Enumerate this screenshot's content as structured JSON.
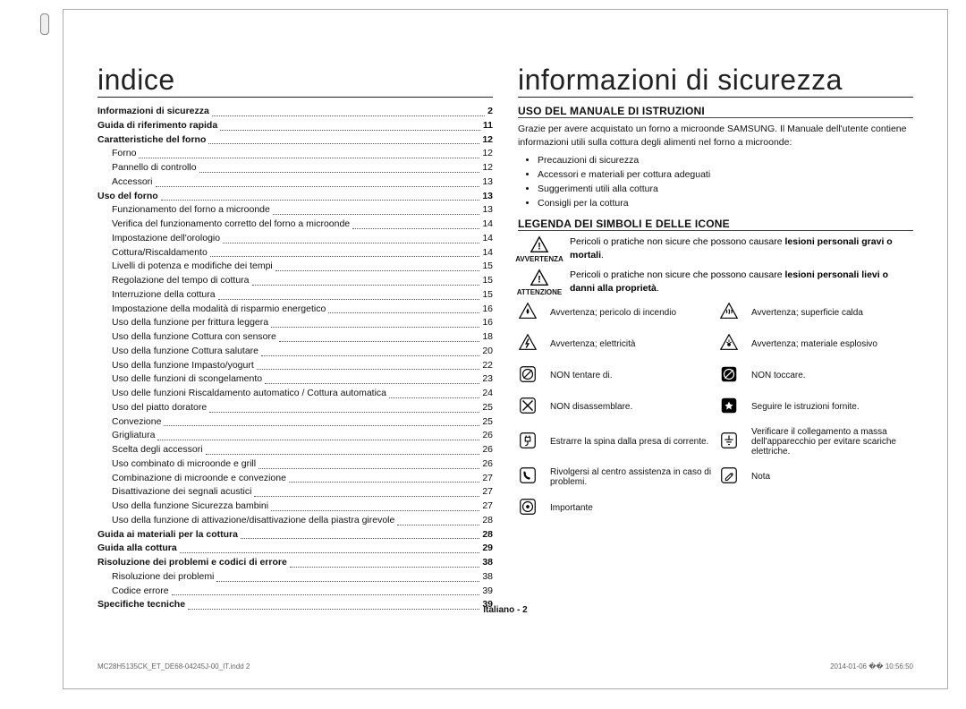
{
  "left": {
    "title": "indice",
    "toc": [
      {
        "label": "Informazioni di sicurezza",
        "page": "2",
        "bold": true,
        "indent": false
      },
      {
        "label": "Guida di riferimento rapida",
        "page": "11",
        "bold": true,
        "indent": false
      },
      {
        "label": "Caratteristiche del forno",
        "page": "12",
        "bold": true,
        "indent": false
      },
      {
        "label": "Forno",
        "page": "12",
        "bold": false,
        "indent": true
      },
      {
        "label": "Pannello di controllo",
        "page": "12",
        "bold": false,
        "indent": true
      },
      {
        "label": "Accessori",
        "page": "13",
        "bold": false,
        "indent": true
      },
      {
        "label": "Uso del forno",
        "page": "13",
        "bold": true,
        "indent": false
      },
      {
        "label": "Funzionamento del forno a microonde",
        "page": "13",
        "bold": false,
        "indent": true
      },
      {
        "label": "Verifica del funzionamento corretto del forno a microonde",
        "page": "14",
        "bold": false,
        "indent": true
      },
      {
        "label": "Impostazione dell'orologio",
        "page": "14",
        "bold": false,
        "indent": true
      },
      {
        "label": "Cottura/Riscaldamento",
        "page": "14",
        "bold": false,
        "indent": true
      },
      {
        "label": "Livelli di potenza e modifiche dei tempi",
        "page": "15",
        "bold": false,
        "indent": true
      },
      {
        "label": "Regolazione del tempo di cottura",
        "page": "15",
        "bold": false,
        "indent": true
      },
      {
        "label": "Interruzione della cottura",
        "page": "15",
        "bold": false,
        "indent": true
      },
      {
        "label": "Impostazione della modalità di risparmio energetico",
        "page": "16",
        "bold": false,
        "indent": true
      },
      {
        "label": "Uso della funzione per frittura leggera",
        "page": "16",
        "bold": false,
        "indent": true
      },
      {
        "label": "Uso della funzione Cottura con sensore",
        "page": "18",
        "bold": false,
        "indent": true
      },
      {
        "label": "Uso della funzione Cottura salutare",
        "page": "20",
        "bold": false,
        "indent": true
      },
      {
        "label": "Uso della funzione Impasto/yogurt",
        "page": "22",
        "bold": false,
        "indent": true
      },
      {
        "label": "Uso delle funzioni di scongelamento",
        "page": "23",
        "bold": false,
        "indent": true
      },
      {
        "label": "Uso delle funzioni Riscaldamento automatico / Cottura automatica",
        "page": "24",
        "bold": false,
        "indent": true
      },
      {
        "label": "Uso del piatto doratore",
        "page": "25",
        "bold": false,
        "indent": true
      },
      {
        "label": "Convezione",
        "page": "25",
        "bold": false,
        "indent": true
      },
      {
        "label": "Grigliatura",
        "page": "26",
        "bold": false,
        "indent": true
      },
      {
        "label": "Scelta degli accessori",
        "page": "26",
        "bold": false,
        "indent": true
      },
      {
        "label": "Uso combinato di microonde e grill",
        "page": "26",
        "bold": false,
        "indent": true
      },
      {
        "label": "Combinazione di microonde e convezione",
        "page": "27",
        "bold": false,
        "indent": true
      },
      {
        "label": "Disattivazione dei segnali acustici",
        "page": "27",
        "bold": false,
        "indent": true
      },
      {
        "label": "Uso della funzione Sicurezza bambini",
        "page": "27",
        "bold": false,
        "indent": true
      },
      {
        "label": "Uso della funzione di attivazione/disattivazione della piastra girevole",
        "page": "28",
        "bold": false,
        "indent": true
      },
      {
        "label": "Guida ai materiali per la cottura",
        "page": "28",
        "bold": true,
        "indent": false
      },
      {
        "label": "Guida alla cottura",
        "page": "29",
        "bold": true,
        "indent": false
      },
      {
        "label": "Risoluzione dei problemi e codici di errore",
        "page": "38",
        "bold": true,
        "indent": false
      },
      {
        "label": "Risoluzione dei problemi",
        "page": "38",
        "bold": false,
        "indent": true
      },
      {
        "label": "Codice errore",
        "page": "39",
        "bold": false,
        "indent": true
      },
      {
        "label": "Specifiche tecniche",
        "page": "39",
        "bold": true,
        "indent": false
      }
    ]
  },
  "right": {
    "title": "informazioni di sicurezza",
    "section1": {
      "heading": "USO DEL MANUALE DI ISTRUZIONI",
      "para": "Grazie per avere acquistato un forno a microonde SAMSUNG. Il Manuale dell'utente contiene informazioni utili sulla cottura degli alimenti nel forno a microonde:",
      "bullets": [
        "Precauzioni di sicurezza",
        "Accessori e materiali per cottura adeguati",
        "Suggerimenti utili alla cottura",
        "Consigli per la cottura"
      ]
    },
    "section2": {
      "heading": "LEGENDA DEI SIMBOLI E DELLE ICONE",
      "warn": {
        "label": "AVVERTENZA",
        "text_plain": "Pericoli o pratiche non sicure che possono causare ",
        "text_bold": "lesioni personali gravi o mortali"
      },
      "caut": {
        "label": "ATTENZIONE",
        "text_plain": "Pericoli o pratiche non sicure che possono causare ",
        "text_bold": "lesioni personali lievi o danni alla proprietà"
      },
      "icons": [
        {
          "l": "Avvertenza; pericolo di incendio",
          "r": "Avvertenza; superficie calda"
        },
        {
          "l": "Avvertenza; elettricità",
          "r": "Avvertenza; materiale esplosivo"
        },
        {
          "l": "NON tentare di.",
          "r": "NON toccare."
        },
        {
          "l": "NON disassemblare.",
          "r": "Seguire le istruzioni fornite."
        },
        {
          "l": "Estrarre la spina dalla presa di corrente.",
          "r": "Verificare il collegamento a massa dell'apparecchio per evitare scariche elettriche."
        },
        {
          "l": "Rivolgersi al centro assistenza in caso di problemi.",
          "r": "Nota"
        },
        {
          "l": "Importante",
          "r": ""
        }
      ]
    }
  },
  "footer": {
    "center": "Italiano - 2",
    "left": "MC28H5135CK_ET_DE68-04245J-00_IT.indd   2",
    "right": "2014-01-06   �� 10:56:50"
  },
  "colors": {
    "text": "#111111",
    "border": "#aaaaaa",
    "dots": "#555555"
  }
}
